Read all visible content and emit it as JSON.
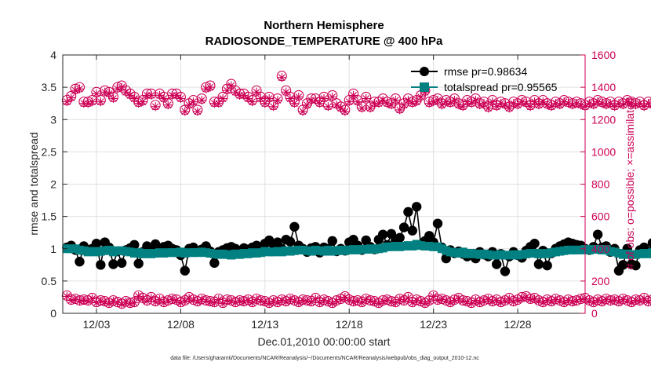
{
  "chart_data": {
    "type": "line",
    "title": "Northern Hemisphere",
    "subtitle": "RADIOSONDE_TEMPERATURE @ 400 hPa",
    "xlabel": "Dec.01,2010 00:00:00 start",
    "ylabel_left": "rmse and totalspread",
    "ylabel_right": "# of obs: o=possible; ×=assimilated",
    "footnote": "data file: /Users/gharamti/Documents/NCAR/Reanalysis/~/Documents/NCAR/Reanalysis/webpub/obs_diag_output_2010-12.nc",
    "xlim": [
      0,
      31
    ],
    "ylim_left": [
      0,
      4
    ],
    "ylim_right": [
      0,
      1600
    ],
    "x_ticks": [
      2,
      7,
      12,
      17,
      22,
      27
    ],
    "x_tick_labels": [
      "12/03",
      "12/08",
      "12/13",
      "12/18",
      "12/23",
      "12/28"
    ],
    "y_left_ticks": [
      0,
      0.5,
      1,
      1.5,
      2,
      2.5,
      3,
      3.5,
      4
    ],
    "y_left_tick_labels": [
      "0",
      "0.5",
      "1",
      "1.5",
      "2",
      "2.5",
      "3",
      "3.5",
      "4"
    ],
    "y_right_ticks": [
      0,
      200,
      400,
      600,
      800,
      1000,
      1200,
      1400,
      1600
    ],
    "y_right_tick_labels": [
      "0",
      "200",
      "400",
      "600",
      "800",
      "1000",
      "1200",
      "1400",
      "1600"
    ],
    "grid": true,
    "legend_position": "top-right",
    "colors": {
      "rmse": "#000000",
      "totalspread": "#008080",
      "obs": "#cc0055",
      "axis": "#262626",
      "grid": "#e0e0e0"
    },
    "x_start": 0.25,
    "x_step": 0.25,
    "series": [
      {
        "name": "rmse",
        "legend": "rmse pr=0.98634",
        "axis": "left",
        "marker": "filled-circle",
        "values": [
          1.02,
          1.05,
          0.98,
          0.8,
          1.04,
          0.97,
          1.0,
          1.08,
          0.75,
          1.1,
          1.02,
          0.76,
          0.96,
          0.78,
          0.98,
          1.01,
          1.06,
          0.77,
          0.95,
          1.04,
          0.97,
          1.07,
          0.99,
          1.03,
          1.05,
          1.0,
          0.98,
          0.9,
          0.66,
          1.0,
          1.02,
          0.97,
          0.99,
          1.04,
          0.96,
          0.78,
          0.95,
          0.98,
          1.01,
          1.03,
          1.0,
          0.97,
          1.01,
          0.99,
          1.02,
          1.05,
          0.99,
          1.08,
          1.13,
          1.07,
          1.1,
          1.0,
          1.14,
          1.11,
          1.34,
          1.05,
          1.0,
          0.95,
          1.01,
          1.03,
          0.94,
          1.02,
          1.0,
          1.12,
          0.96,
          1.0,
          0.97,
          1.1,
          1.14,
          1.05,
          0.98,
          1.13,
          1.03,
          0.99,
          1.14,
          1.22,
          1.06,
          1.23,
          1.13,
          1.17,
          1.33,
          1.57,
          1.28,
          1.65,
          1.07,
          1.12,
          1.2,
          1.1,
          1.39,
          1.02,
          0.85,
          0.98,
          0.93,
          0.96,
          0.92,
          0.88,
          0.92,
          0.85,
          0.95,
          0.91,
          0.88,
          0.95,
          0.76,
          0.92,
          0.65,
          0.88,
          0.95,
          0.9,
          0.86,
          0.97,
          1.03,
          1.08,
          0.76,
          0.97,
          0.74,
          0.93,
          1.0,
          1.04,
          1.07,
          1.1,
          1.08,
          1.06,
          1.05,
          1.0,
          0.98,
          1.03,
          1.22,
          1.02,
          1.04,
          0.95,
          1.0,
          0.66,
          0.75,
          1.0,
          0.76,
          0.74,
          0.98,
          1.02,
          0.95,
          1.09,
          0.68,
          0.96,
          0.88,
          1.08,
          0.95,
          1.04,
          0.75,
          1.07,
          0.97,
          1.02,
          0.87,
          0.91,
          0.9,
          0.93
        ]
      },
      {
        "name": "totalspread",
        "legend": "totalspread pr=0.95565",
        "axis": "left",
        "marker": "filled-square",
        "values": [
          1.0,
          1.0,
          1.0,
          0.98,
          0.97,
          0.95,
          0.96,
          0.95,
          0.96,
          0.97,
          0.98,
          0.95,
          0.97,
          0.97,
          0.96,
          0.95,
          0.93,
          0.94,
          0.92,
          0.93,
          0.92,
          0.93,
          0.94,
          0.93,
          0.94,
          0.94,
          0.94,
          0.95,
          0.93,
          0.94,
          0.94,
          0.94,
          0.95,
          0.94,
          0.93,
          0.92,
          0.91,
          0.92,
          0.91,
          0.9,
          0.92,
          0.91,
          0.93,
          0.92,
          0.94,
          0.93,
          0.94,
          0.96,
          0.95,
          0.95,
          0.96,
          0.95,
          0.97,
          0.96,
          0.97,
          0.98,
          0.98,
          0.97,
          0.96,
          0.98,
          0.97,
          0.96,
          0.98,
          0.96,
          0.97,
          0.98,
          0.97,
          0.98,
          0.99,
          0.98,
          0.99,
          0.99,
          1.0,
          0.99,
          1.0,
          1.01,
          1.03,
          1.03,
          1.04,
          1.03,
          1.04,
          1.05,
          1.04,
          1.07,
          1.05,
          1.04,
          1.04,
          1.03,
          1.03,
          1.0,
          0.97,
          0.95,
          0.94,
          0.93,
          0.95,
          0.92,
          0.93,
          0.92,
          0.91,
          0.92,
          0.91,
          0.9,
          0.9,
          0.91,
          0.9,
          0.9,
          0.91,
          0.9,
          0.91,
          0.92,
          0.93,
          0.93,
          0.92,
          0.93,
          0.92,
          0.94,
          0.95,
          0.96,
          0.97,
          0.98,
          0.98,
          0.98,
          0.98,
          0.99,
          0.98,
          0.99,
          0.99,
          0.98,
          0.99,
          0.96,
          0.95,
          0.93,
          0.91,
          0.92,
          0.91,
          0.91,
          0.92,
          0.93,
          0.92,
          0.94,
          0.92,
          0.93,
          0.94,
          0.95,
          0.93,
          0.95,
          0.94,
          0.93,
          0.93,
          0.92,
          0.91,
          0.91
        ]
      },
      {
        "name": "obs_possible",
        "axis": "right",
        "marker": "open-circle",
        "values": [
          1320,
          1345,
          1390,
          1400,
          1310,
          1310,
          1320,
          1370,
          1320,
          1380,
          1370,
          1340,
          1400,
          1410,
          1380,
          1360,
          1340,
          1310,
          1320,
          1360,
          1360,
          1290,
          1360,
          1340,
          1300,
          1360,
          1360,
          1340,
          1260,
          1300,
          1320,
          1260,
          1330,
          1400,
          1410,
          1310,
          1310,
          1340,
          1390,
          1420,
          1380,
          1360,
          1360,
          1340,
          1320,
          1380,
          1340,
          1310,
          1340,
          1290,
          1330,
          1470,
          1380,
          1340,
          1310,
          1350,
          1260,
          1300,
          1330,
          1330,
          1310,
          1340,
          1290,
          1350,
          1300,
          1280,
          1260,
          1320,
          1360,
          1320,
          1280,
          1340,
          1280,
          1310,
          1310,
          1330,
          1310,
          1300,
          1330,
          1270,
          1300,
          1330,
          1310,
          1320,
          1350,
          1380,
          1310,
          1320,
          1330,
          1300,
          1320,
          1310,
          1330,
          1300,
          1290,
          1320,
          1310,
          1330,
          1300,
          1310,
          1280,
          1320,
          1290,
          1310,
          1300,
          1280,
          1310,
          1300,
          1320,
          1310,
          1290,
          1320,
          1300,
          1320,
          1300,
          1290,
          1310,
          1300,
          1320,
          1310,
          1300,
          1310,
          1300,
          1290,
          1310,
          1300,
          1320,
          1310,
          1300,
          1310,
          1290,
          1310,
          1300,
          1320,
          1310,
          1300,
          1310,
          1290,
          1310,
          1300,
          1320,
          1310,
          1300,
          1310,
          1290,
          1300,
          1310,
          1320,
          1300,
          1310,
          1300,
          1290,
          1310,
          1300,
          1310,
          1300
        ]
      },
      {
        "name": "obs_assimilated",
        "axis": "right",
        "marker": "asterisk",
        "values": [
          1310,
          1335,
          1380,
          1390,
          1300,
          1300,
          1310,
          1360,
          1310,
          1370,
          1360,
          1330,
          1390,
          1400,
          1370,
          1350,
          1330,
          1300,
          1310,
          1350,
          1350,
          1280,
          1350,
          1330,
          1290,
          1350,
          1350,
          1330,
          1250,
          1290,
          1310,
          1250,
          1320,
          1390,
          1400,
          1300,
          1300,
          1330,
          1380,
          1410,
          1370,
          1350,
          1350,
          1330,
          1310,
          1370,
          1330,
          1300,
          1330,
          1280,
          1320,
          1460,
          1370,
          1330,
          1300,
          1340,
          1250,
          1290,
          1320,
          1320,
          1300,
          1330,
          1280,
          1340,
          1290,
          1270,
          1250,
          1310,
          1350,
          1310,
          1270,
          1330,
          1270,
          1300,
          1300,
          1320,
          1300,
          1290,
          1320,
          1260,
          1290,
          1320,
          1300,
          1310,
          1340,
          1370,
          1300,
          1310,
          1320,
          1290,
          1310,
          1300,
          1320,
          1290,
          1280,
          1310,
          1300,
          1320,
          1290,
          1300,
          1270,
          1310,
          1280,
          1300,
          1290,
          1270,
          1300,
          1290,
          1310,
          1300,
          1280,
          1310,
          1290,
          1310,
          1290,
          1280,
          1300,
          1290,
          1310,
          1300,
          1290,
          1300,
          1290,
          1280,
          1300,
          1290,
          1310,
          1300,
          1290,
          1300,
          1280,
          1300,
          1290,
          1310,
          1300,
          1290,
          1300,
          1280,
          1300,
          1290,
          1310,
          1300,
          1290,
          1300,
          1280,
          1290,
          1300,
          1310,
          1290,
          1300,
          1290,
          1280,
          1300,
          1290,
          1300,
          1290
        ]
      },
      {
        "name": "obs_low_possible",
        "axis": "right",
        "marker": "open-circle",
        "values": [
          110,
          85,
          90,
          80,
          85,
          80,
          95,
          70,
          80,
          75,
          65,
          80,
          70,
          60,
          75,
          65,
          70,
          110,
          95,
          80,
          100,
          75,
          90,
          70,
          80,
          90,
          85,
          70,
          80,
          100,
          85,
          75,
          90,
          80,
          75,
          70,
          90,
          65,
          85,
          80,
          70,
          80,
          75,
          85,
          70,
          90,
          80,
          75,
          65,
          80,
          70,
          85,
          75,
          90,
          80,
          70,
          85,
          80,
          75,
          95,
          70,
          85,
          75,
          65,
          80,
          90,
          105,
          85,
          75,
          80,
          70,
          90,
          80,
          75,
          65,
          80,
          85,
          75,
          70,
          90,
          80,
          100,
          70,
          85,
          75,
          65,
          80,
          110,
          85,
          90,
          80,
          70,
          85,
          95,
          80,
          75,
          65,
          85,
          70,
          80,
          90,
          75,
          85,
          70,
          80,
          95,
          75,
          85,
          100,
          105,
          90,
          95,
          80,
          70,
          85,
          75,
          90,
          80,
          70,
          85,
          75,
          80,
          90,
          95,
          80,
          70,
          85,
          75,
          90,
          80,
          85,
          75,
          90,
          80,
          70,
          85,
          80,
          95,
          75,
          85,
          70,
          80,
          90,
          75,
          85,
          80,
          70,
          85,
          75,
          90,
          80,
          95,
          85,
          75,
          90,
          0
        ]
      },
      {
        "name": "obs_low_assimilated",
        "axis": "right",
        "marker": "asterisk",
        "values": [
          105,
          80,
          85,
          75,
          80,
          75,
          90,
          65,
          75,
          70,
          60,
          75,
          65,
          55,
          70,
          60,
          65,
          105,
          90,
          75,
          95,
          70,
          85,
          65,
          75,
          85,
          80,
          65,
          75,
          95,
          80,
          70,
          85,
          75,
          70,
          65,
          85,
          60,
          80,
          75,
          65,
          75,
          70,
          80,
          65,
          85,
          75,
          70,
          60,
          75,
          65,
          80,
          70,
          85,
          75,
          65,
          80,
          75,
          70,
          90,
          65,
          80,
          70,
          60,
          75,
          85,
          100,
          80,
          70,
          75,
          65,
          85,
          75,
          70,
          60,
          75,
          80,
          70,
          65,
          85,
          75,
          95,
          65,
          80,
          70,
          60,
          75,
          105,
          80,
          85,
          75,
          65,
          80,
          90,
          75,
          70,
          60,
          80,
          65,
          75,
          85,
          70,
          80,
          65,
          75,
          90,
          70,
          80,
          95,
          100,
          85,
          90,
          75,
          65,
          80,
          70,
          85,
          75,
          65,
          80,
          70,
          75,
          85,
          90,
          75,
          65,
          80,
          70,
          85,
          75,
          80,
          70,
          85,
          75,
          65,
          80,
          75,
          90,
          70,
          80,
          65,
          75,
          85,
          70,
          80,
          75,
          65,
          80,
          70,
          85,
          75,
          90,
          80,
          70,
          85,
          0
        ]
      }
    ]
  }
}
